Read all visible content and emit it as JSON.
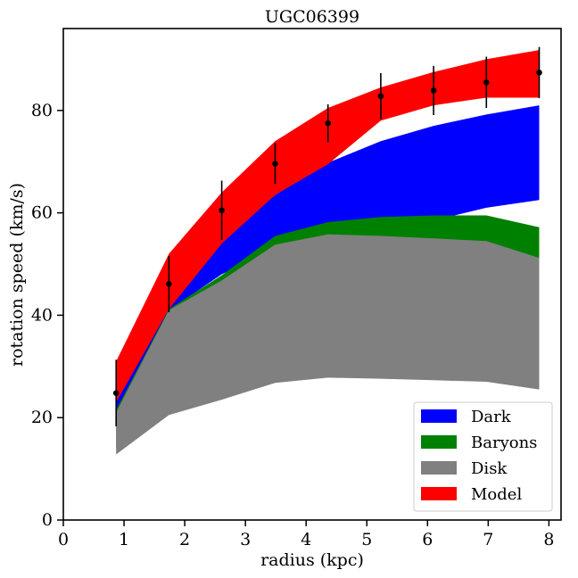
{
  "chart_data": {
    "type": "area",
    "title": "UGC06399",
    "xlabel": "radius (kpc)",
    "ylabel": "rotation speed (km/s)",
    "xlim": [
      0,
      8.2
    ],
    "ylim": [
      0,
      96
    ],
    "xticks": [
      0,
      1,
      2,
      3,
      4,
      5,
      6,
      7,
      8
    ],
    "yticks": [
      0,
      20,
      40,
      60,
      80
    ],
    "grid": false,
    "legend_position": "bottom-right",
    "x": [
      0.87,
      1.74,
      2.61,
      3.49,
      4.36,
      5.23,
      6.1,
      6.97,
      7.84
    ],
    "series": [
      {
        "name": "Dark",
        "color": "#0000ff",
        "upper": [
          24.5,
          41.5,
          54.5,
          63.5,
          69.8,
          74.0,
          77.0,
          79.2,
          81.0
        ],
        "lower": [
          21.0,
          41.0,
          48.0,
          53.0,
          55.5,
          57.0,
          58.5,
          61.0,
          62.5
        ]
      },
      {
        "name": "Baryons",
        "color": "#008000",
        "upper": [
          21.5,
          41.2,
          47.8,
          55.5,
          58.2,
          59.2,
          59.5,
          59.5,
          57.2
        ],
        "lower": [
          14.0,
          40.5,
          46.5,
          52.0,
          53.0,
          52.0,
          51.0,
          51.0,
          36.5
        ]
      },
      {
        "name": "Disk",
        "color": "#808080",
        "upper": [
          21.0,
          41.0,
          46.8,
          53.8,
          55.8,
          55.5,
          55.0,
          54.5,
          51.2
        ],
        "lower": [
          12.8,
          20.5,
          23.5,
          26.8,
          27.8,
          27.6,
          27.3,
          27.0,
          25.5
        ]
      },
      {
        "name": "Model",
        "color": "#ff0000",
        "upper": [
          31.0,
          52.0,
          64.0,
          74.0,
          80.5,
          84.5,
          87.5,
          90.0,
          91.8
        ],
        "lower": [
          23.0,
          41.2,
          54.0,
          63.5,
          69.5,
          78.0,
          81.0,
          82.5,
          82.5
        ]
      }
    ],
    "observed": {
      "x": [
        0.87,
        1.74,
        2.61,
        3.49,
        4.36,
        5.23,
        6.1,
        6.97,
        7.84
      ],
      "y": [
        24.8,
        46.1,
        60.5,
        69.6,
        77.5,
        82.8,
        83.9,
        85.5,
        87.4
      ],
      "err": [
        6.5,
        5.5,
        5.8,
        4.0,
        3.7,
        4.5,
        4.8,
        5.0,
        5.0
      ]
    }
  }
}
